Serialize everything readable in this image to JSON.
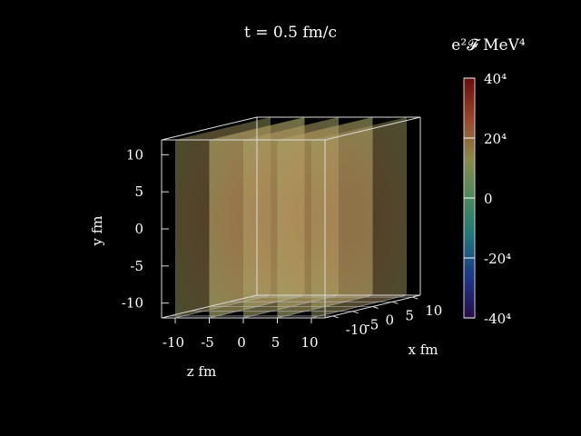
{
  "chart_data": {
    "type": "3d-volume-slices",
    "title": "t = 0.5 fm/c",
    "x_axis": {
      "label": "x fm",
      "ticks": [
        "-10",
        "-5",
        "0",
        "5",
        "10"
      ],
      "range": [
        -12,
        12
      ]
    },
    "y_axis": {
      "label": "y fm",
      "ticks": [
        "-10",
        "-5",
        "0",
        "5",
        "10"
      ],
      "range": [
        -12,
        12
      ]
    },
    "z_axis": {
      "label": "z fm",
      "ticks": [
        "-10",
        "-5",
        "0",
        "5",
        "10"
      ],
      "range": [
        -12,
        12
      ]
    },
    "slices": [
      {
        "z": -10,
        "intensity": 0.45
      },
      {
        "z": -5,
        "intensity": 0.65
      },
      {
        "z": 0,
        "intensity": 0.55
      },
      {
        "z": 5,
        "intensity": 0.6
      },
      {
        "z": 10,
        "intensity": 0.45
      }
    ],
    "colorbar": {
      "title": "e²𝓕 MeV⁴",
      "ticks": [
        {
          "value": 40,
          "label": "40⁴"
        },
        {
          "value": 20,
          "label": "20⁴"
        },
        {
          "value": 0,
          "label": "0"
        },
        {
          "value": -20,
          "label": "-20⁴"
        },
        {
          "value": -40,
          "label": "-40⁴"
        }
      ],
      "range": [
        -40,
        40
      ],
      "colors": [
        "#2a0a4a",
        "#1a3a8a",
        "#1f7a7a",
        "#4a8a5a",
        "#8a8a4a",
        "#9a4a2a",
        "#6a0a0a"
      ]
    }
  }
}
